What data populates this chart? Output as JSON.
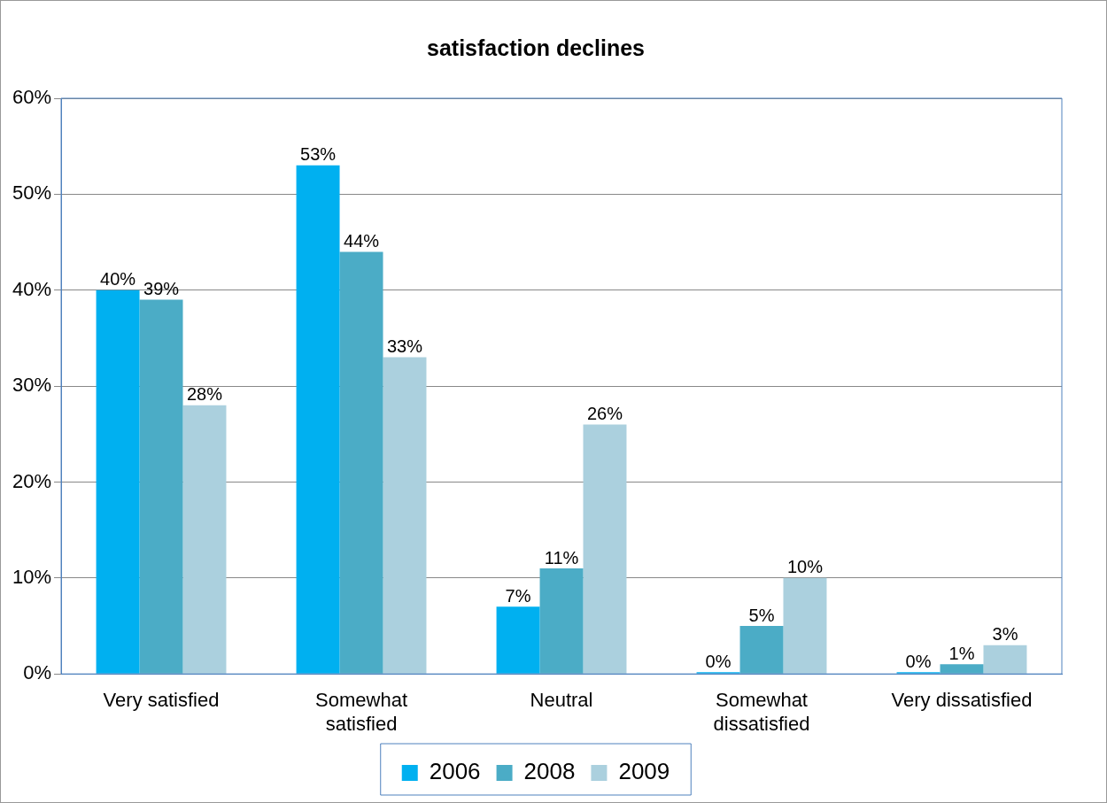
{
  "chart_data": {
    "type": "bar",
    "title": "satisfaction declines",
    "categories": [
      "Very satisfied",
      "Somewhat\nsatisfied",
      "Neutral",
      "Somewhat\ndissatisfied",
      "Very dissatisfied"
    ],
    "series": [
      {
        "name": "2006",
        "color": "#00b0f0",
        "values": [
          40,
          53,
          7,
          0,
          0
        ],
        "value_labels": [
          "40%",
          "53%",
          "7%",
          "0%",
          "0%"
        ]
      },
      {
        "name": "2008",
        "color": "#4bacc6",
        "values": [
          39,
          44,
          11,
          5,
          1
        ],
        "value_labels": [
          "39%",
          "44%",
          "11%",
          "5%",
          "1%"
        ]
      },
      {
        "name": "2009",
        "color": "#abd0de",
        "values": [
          28,
          33,
          26,
          10,
          3
        ],
        "value_labels": [
          "28%",
          "33%",
          "26%",
          "10%",
          "3%"
        ]
      }
    ],
    "ylim": [
      0,
      60
    ],
    "yticks": [
      {
        "value": 0,
        "label": "0%"
      },
      {
        "value": 10,
        "label": "10%"
      },
      {
        "value": 20,
        "label": "20%"
      },
      {
        "value": 30,
        "label": "30%"
      },
      {
        "value": 40,
        "label": "40%"
      },
      {
        "value": 50,
        "label": "50%"
      },
      {
        "value": 60,
        "label": "60%"
      }
    ],
    "grid": "y",
    "legend": "bottom"
  }
}
